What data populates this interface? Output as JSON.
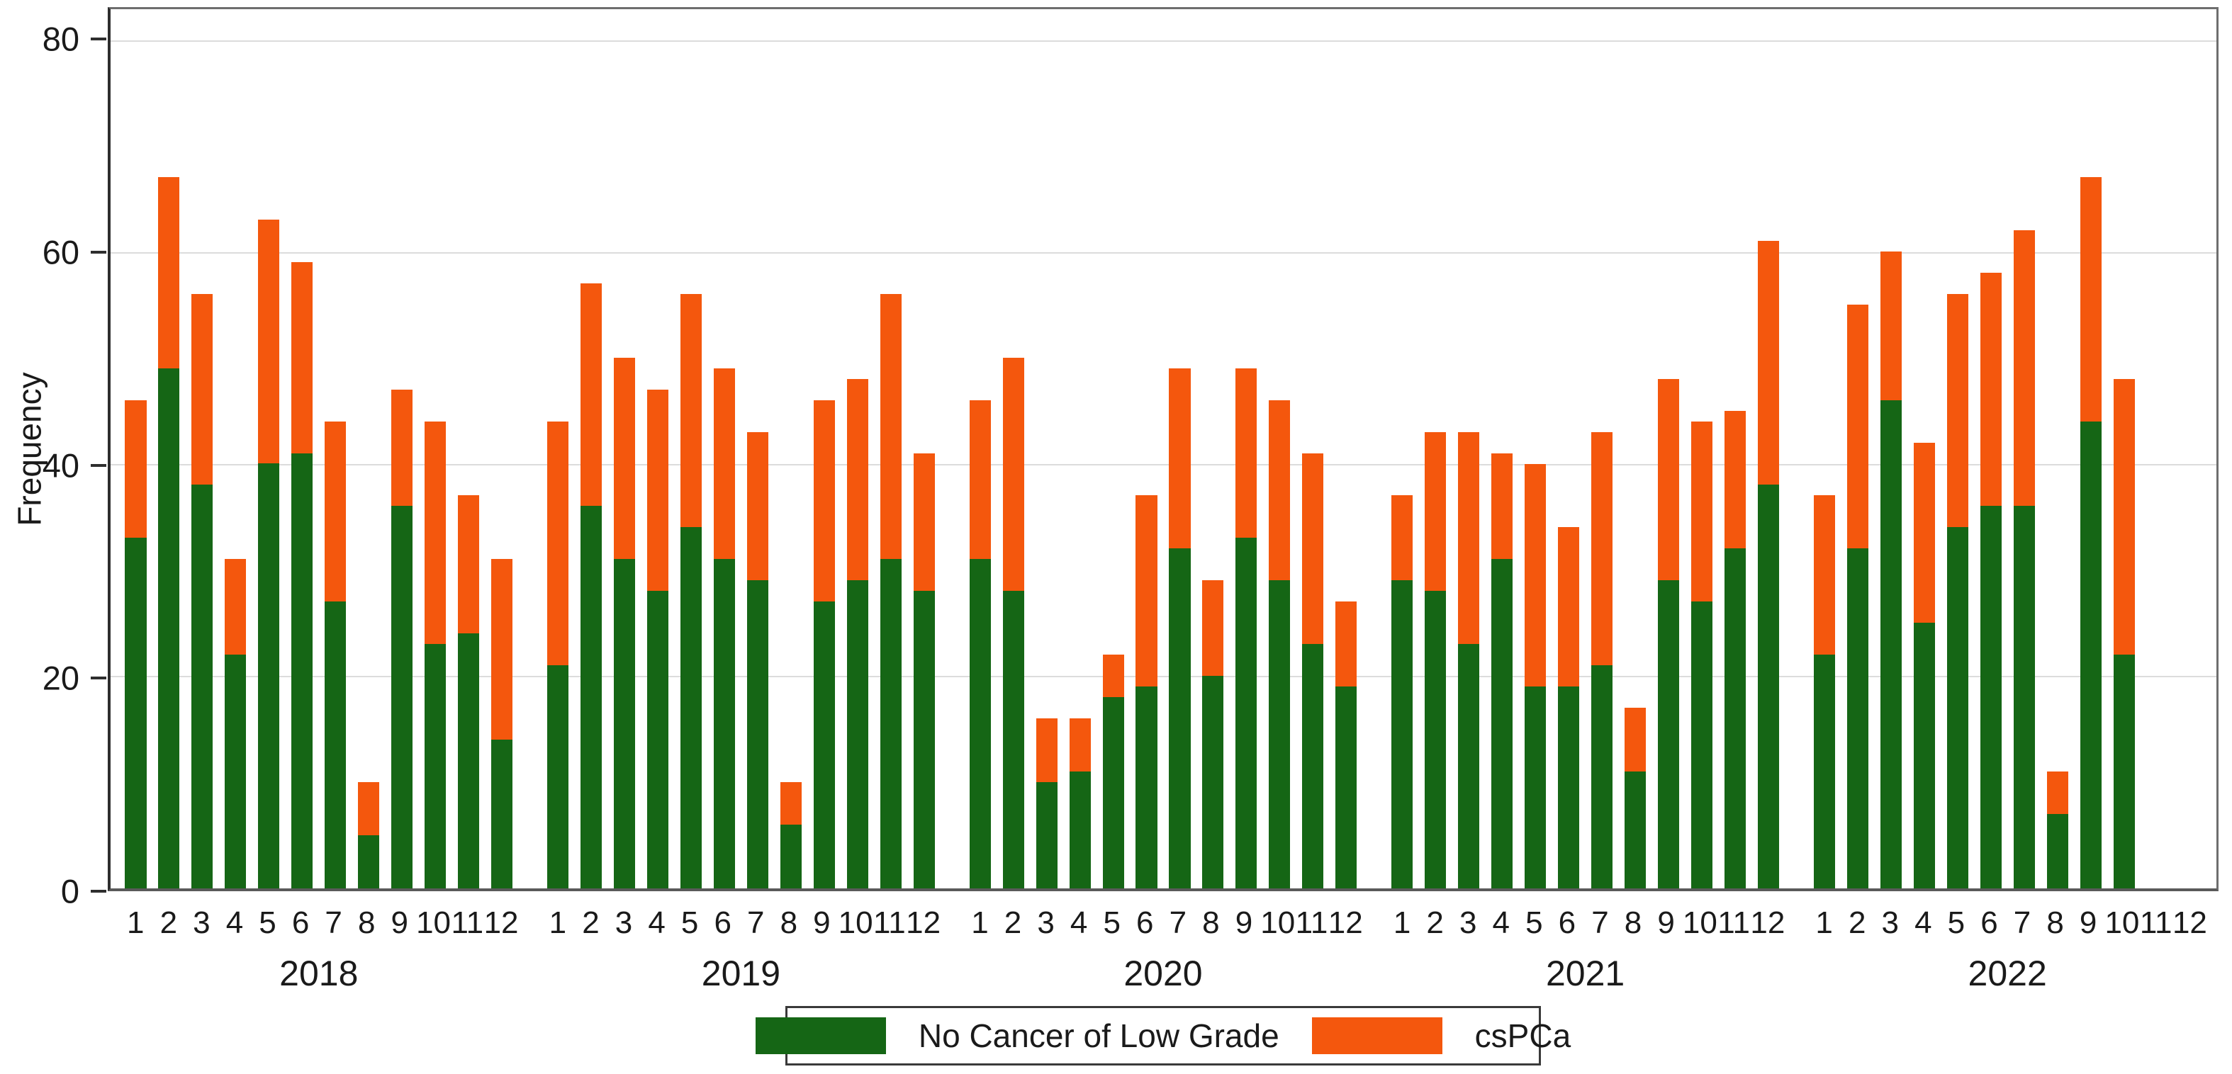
{
  "y_axis": {
    "title": "Frequency",
    "ticks": [
      0,
      20,
      40,
      60,
      80
    ],
    "max": 83
  },
  "legend": {
    "series1_label": "No Cancer of Low Grade",
    "series2_label": "csPCa"
  },
  "colors": {
    "no_cancer_low_grade": "#156615",
    "cspca": "#f4570d",
    "grid": "#dcdcdc",
    "axis": "#2e2e2e"
  },
  "chart_data": {
    "type": "bar",
    "stacked": true,
    "title": "",
    "xlabel": "",
    "ylabel": "Frequency",
    "ylim": [
      0,
      83
    ],
    "yticks": [
      0,
      20,
      40,
      60,
      80
    ],
    "grid": "horizontal",
    "legend_position": "bottom-center",
    "month_labels": [
      "1",
      "2",
      "3",
      "4",
      "5",
      "6",
      "7",
      "8",
      "9",
      "10",
      "11",
      "12"
    ],
    "series_names": [
      "No Cancer of Low Grade",
      "csPCa"
    ],
    "groups": [
      {
        "year": "2018",
        "no_cancer_low_grade": [
          33,
          49,
          38,
          22,
          40,
          41,
          27,
          5,
          36,
          23,
          24,
          14
        ],
        "cspca": [
          13,
          18,
          18,
          9,
          23,
          18,
          17,
          5,
          11,
          21,
          13,
          17
        ],
        "totals": [
          46,
          67,
          56,
          31,
          63,
          59,
          44,
          10,
          47,
          44,
          37,
          31
        ]
      },
      {
        "year": "2019",
        "no_cancer_low_grade": [
          21,
          36,
          31,
          28,
          34,
          31,
          29,
          6,
          27,
          29,
          31,
          28
        ],
        "cspca": [
          23,
          21,
          19,
          19,
          22,
          18,
          14,
          4,
          19,
          19,
          25,
          13
        ],
        "totals": [
          44,
          57,
          50,
          47,
          56,
          49,
          43,
          10,
          46,
          48,
          56,
          41
        ]
      },
      {
        "year": "2020",
        "no_cancer_low_grade": [
          31,
          28,
          10,
          11,
          18,
          19,
          32,
          20,
          33,
          29,
          23,
          19
        ],
        "cspca": [
          15,
          22,
          6,
          5,
          4,
          18,
          17,
          9,
          16,
          17,
          18,
          8
        ],
        "totals": [
          46,
          50,
          16,
          16,
          22,
          37,
          49,
          29,
          49,
          46,
          41,
          27
        ]
      },
      {
        "year": "2021",
        "no_cancer_low_grade": [
          29,
          28,
          23,
          31,
          19,
          19,
          21,
          11,
          29,
          27,
          32,
          38
        ],
        "cspca": [
          8,
          15,
          20,
          10,
          21,
          15,
          22,
          6,
          19,
          17,
          13,
          23
        ],
        "totals": [
          37,
          43,
          43,
          41,
          40,
          34,
          43,
          17,
          48,
          44,
          45,
          61
        ]
      },
      {
        "year": "2022",
        "no_cancer_low_grade": [
          22,
          32,
          46,
          25,
          34,
          36,
          36,
          7,
          44,
          22,
          null,
          null
        ],
        "cspca": [
          15,
          23,
          14,
          17,
          22,
          22,
          26,
          4,
          23,
          26,
          null,
          null
        ],
        "totals": [
          37,
          55,
          60,
          42,
          56,
          58,
          62,
          11,
          67,
          48,
          null,
          null
        ]
      }
    ]
  }
}
